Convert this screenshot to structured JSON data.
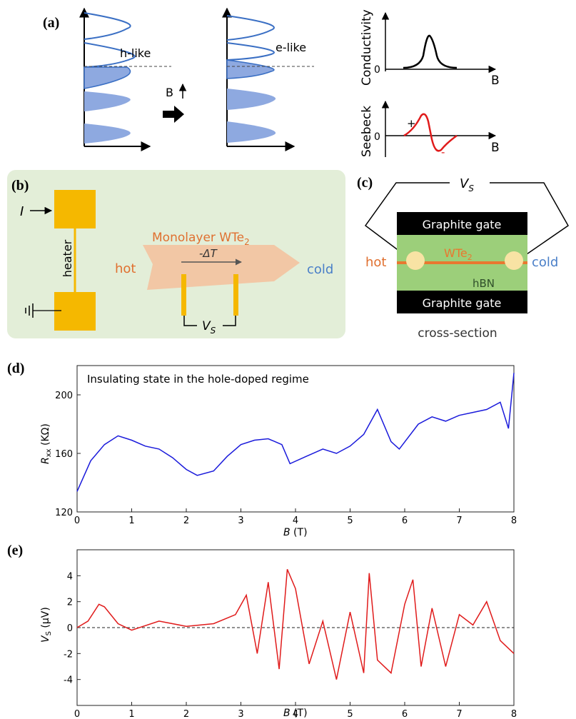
{
  "panels": {
    "a": {
      "label": "(a)",
      "left_diagram": {
        "text": "h-like"
      },
      "right_diagram": {
        "text": "e-like"
      },
      "field_label": "B",
      "conductivity": {
        "ylabel": "Conductivity",
        "zero": "0",
        "xlabel": "B"
      },
      "seebeck": {
        "ylabel": "Seebeck",
        "zero": "0",
        "xlabel": "B",
        "plus": "+",
        "minus": "-"
      }
    },
    "b": {
      "label": "(b)",
      "current": "I",
      "heater": "heater",
      "material": "Monolayer WTe",
      "material_sub": "2",
      "hot": "hot",
      "cold": "cold",
      "gradient": "-ΔT",
      "voltage": "V",
      "voltage_sub": "S"
    },
    "c": {
      "label": "(c)",
      "voltage": "V",
      "voltage_sub": "S",
      "top_gate": "Graphite gate",
      "bottom_gate": "Graphite gate",
      "material": "WTe",
      "material_sub": "2",
      "dielectric": "hBN",
      "hot": "hot",
      "cold": "cold",
      "caption": "cross-section"
    },
    "d": {
      "label": "(d)",
      "annotation": "Insulating state in the hole-doped regime",
      "ylabel_main": "R",
      "ylabel_sub": "xx",
      "ylabel_unit": " (KΩ)",
      "xlabel_main": "B",
      "xlabel_unit": " (T)"
    },
    "e": {
      "label": "(e)",
      "ylabel_main": "V",
      "ylabel_sub": "S",
      "ylabel_unit": " (μV)",
      "xlabel_main": "B",
      "xlabel_unit": " (T)"
    }
  },
  "colors": {
    "blue_curve": "#1a1adb",
    "red_curve": "#e01b1b",
    "band_fill": "#8ea9e0",
    "band_line": "#3a6fc4",
    "panel_b_bg": "#e3eed8",
    "gold": "#f5b800",
    "flake": "#f2c7a5",
    "hot": "#e07030",
    "cold": "#4a7fc8",
    "hbn": "#9ccf7a",
    "wte2_line": "#e9782f"
  },
  "chart_data": [
    {
      "type": "line",
      "panel": "d",
      "ylim": [
        120,
        220
      ],
      "xlim": [
        0,
        8
      ],
      "x_ticks": [
        0,
        1,
        2,
        3,
        4,
        5,
        6,
        7,
        8
      ],
      "y_ticks": [
        120,
        160,
        200
      ],
      "x": [
        0,
        0.25,
        0.5,
        0.75,
        1.0,
        1.25,
        1.5,
        1.75,
        2.0,
        2.2,
        2.5,
        2.75,
        3.0,
        3.25,
        3.5,
        3.75,
        3.9,
        4.2,
        4.5,
        4.75,
        5.0,
        5.25,
        5.5,
        5.75,
        5.9,
        6.25,
        6.5,
        6.75,
        7.0,
        7.25,
        7.5,
        7.75,
        7.9,
        8.0
      ],
      "values": [
        134,
        155,
        166,
        172,
        169,
        165,
        163,
        157,
        149,
        145,
        148,
        158,
        166,
        169,
        170,
        166,
        153,
        158,
        163,
        160,
        165,
        173,
        190,
        168,
        163,
        180,
        185,
        182,
        186,
        188,
        190,
        195,
        177,
        215
      ]
    },
    {
      "type": "line",
      "panel": "e",
      "ylim": [
        -6,
        6
      ],
      "xlim": [
        0,
        8
      ],
      "x_ticks": [
        0,
        1,
        2,
        3,
        4,
        5,
        6,
        7,
        8
      ],
      "y_ticks": [
        -4,
        -2,
        0,
        2,
        4
      ],
      "reference_line": 0,
      "x": [
        0,
        0.2,
        0.4,
        0.5,
        0.75,
        1.0,
        1.5,
        2.0,
        2.5,
        2.9,
        3.1,
        3.3,
        3.5,
        3.7,
        3.85,
        4.0,
        4.25,
        4.5,
        4.75,
        5.0,
        5.25,
        5.35,
        5.5,
        5.75,
        6.0,
        6.15,
        6.3,
        6.5,
        6.75,
        7.0,
        7.25,
        7.5,
        7.75,
        8.0
      ],
      "values": [
        0,
        0.5,
        1.8,
        1.6,
        0.3,
        -0.2,
        0.5,
        0.1,
        0.3,
        1.0,
        2.5,
        -2.0,
        3.5,
        -3.2,
        4.5,
        3.0,
        -2.8,
        0.5,
        -4.0,
        1.2,
        -3.5,
        4.2,
        -2.5,
        -3.5,
        1.8,
        3.7,
        -3.0,
        1.5,
        -3.0,
        1.0,
        0.2,
        2.0,
        -1.0,
        -2.0
      ]
    }
  ]
}
